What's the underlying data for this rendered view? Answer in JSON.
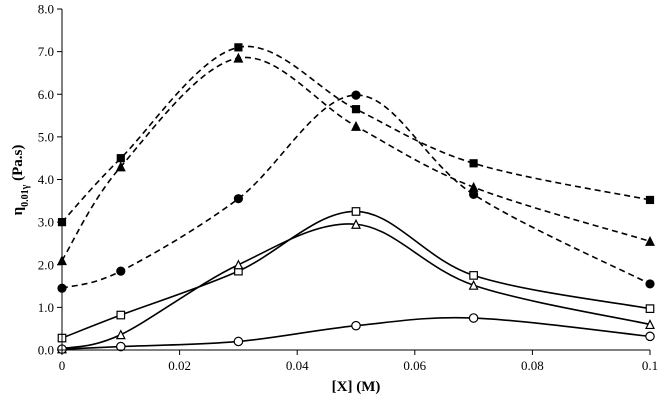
{
  "chart_data": {
    "type": "line",
    "title": "",
    "xlabel": "[X] (M)",
    "ylabel": "η",
    "ylabel_sub": "0.01γ",
    "ylabel_tail": " (Pa.s)",
    "xlim": [
      0,
      0.1
    ],
    "ylim": [
      0,
      8
    ],
    "x_ticks": [
      "0",
      "0.02",
      "0.04",
      "0.06",
      "0.08",
      "0.1"
    ],
    "y_ticks": [
      "0.0",
      "1.0",
      "2.0",
      "3.0",
      "4.0",
      "5.0",
      "6.0",
      "7.0",
      "8.0"
    ],
    "grid": false,
    "legend": "none",
    "series": [
      {
        "marker": "filled-square",
        "line": "dashed",
        "points": [
          [
            0,
            3.0
          ],
          [
            0.01,
            4.5
          ],
          [
            0.03,
            7.1
          ],
          [
            0.05,
            5.65
          ],
          [
            0.07,
            4.38
          ],
          [
            0.1,
            3.52
          ]
        ]
      },
      {
        "marker": "filled-triangle",
        "line": "dashed",
        "points": [
          [
            0,
            2.1
          ],
          [
            0.01,
            4.3
          ],
          [
            0.03,
            6.85
          ],
          [
            0.05,
            5.25
          ],
          [
            0.07,
            3.82
          ],
          [
            0.1,
            2.55
          ]
        ]
      },
      {
        "marker": "filled-circle",
        "line": "dashed",
        "points": [
          [
            0,
            1.45
          ],
          [
            0.01,
            1.85
          ],
          [
            0.03,
            3.55
          ],
          [
            0.05,
            5.98
          ],
          [
            0.07,
            3.65
          ],
          [
            0.1,
            1.55
          ]
        ]
      },
      {
        "marker": "open-square",
        "line": "solid",
        "points": [
          [
            0,
            0.28
          ],
          [
            0.01,
            0.82
          ],
          [
            0.03,
            1.85
          ],
          [
            0.05,
            3.25
          ],
          [
            0.07,
            1.75
          ],
          [
            0.1,
            0.97
          ]
        ]
      },
      {
        "marker": "open-triangle",
        "line": "solid",
        "points": [
          [
            0,
            0.03
          ],
          [
            0.01,
            0.36
          ],
          [
            0.03,
            2.0
          ],
          [
            0.05,
            2.95
          ],
          [
            0.07,
            1.52
          ],
          [
            0.1,
            0.6
          ]
        ]
      },
      {
        "marker": "open-circle",
        "line": "solid",
        "points": [
          [
            0,
            0.02
          ],
          [
            0.01,
            0.08
          ],
          [
            0.03,
            0.2
          ],
          [
            0.05,
            0.57
          ],
          [
            0.07,
            0.75
          ],
          [
            0.1,
            0.32
          ]
        ]
      }
    ]
  }
}
